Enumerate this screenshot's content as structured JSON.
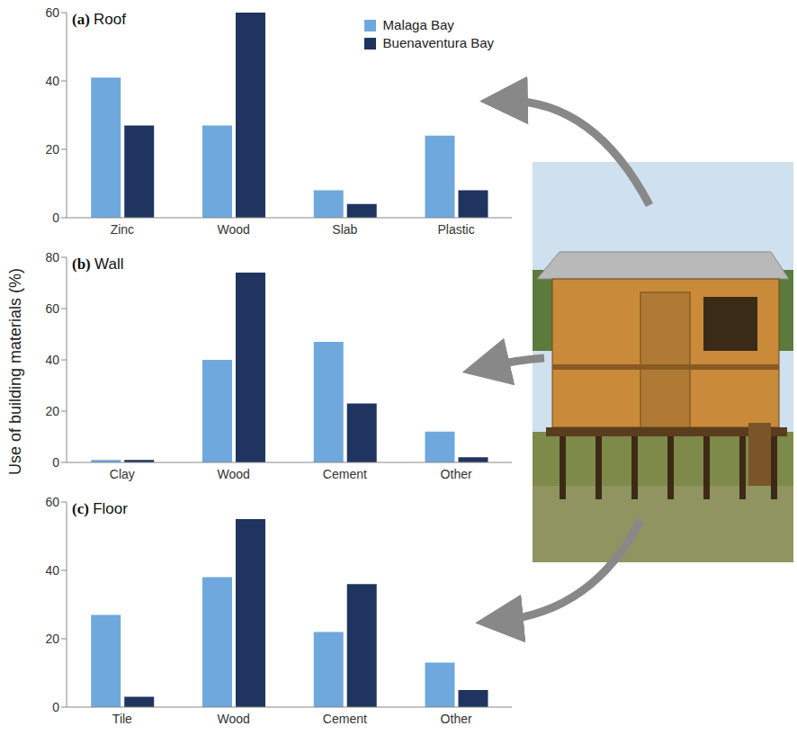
{
  "ylabel": "Use of building materials (%)",
  "chart_data": [
    {
      "type": "bar",
      "title": "(a) Roof",
      "categories": [
        "Zinc",
        "Wood",
        "Slab",
        "Plastic"
      ],
      "series": [
        {
          "name": "Malaga Bay",
          "color": "#6fa8dc",
          "values": [
            41,
            27,
            8,
            24
          ]
        },
        {
          "name": "Buenaventura Bay",
          "color": "#1f3560",
          "values": [
            27,
            60,
            4,
            8
          ]
        }
      ],
      "ylim": [
        0,
        60
      ],
      "yticks": [
        0,
        20,
        40,
        60
      ],
      "grid": false,
      "legend": "upper right"
    },
    {
      "type": "bar",
      "title": "(b) Wall",
      "categories": [
        "Clay",
        "Wood",
        "Cement",
        "Other"
      ],
      "series": [
        {
          "name": "Malaga Bay",
          "color": "#6fa8dc",
          "values": [
            1,
            40,
            47,
            12
          ]
        },
        {
          "name": "Buenaventura Bay",
          "color": "#1f3560",
          "values": [
            1,
            74,
            23,
            2
          ]
        }
      ],
      "ylim": [
        0,
        80
      ],
      "yticks": [
        0,
        20,
        40,
        60,
        80
      ],
      "grid": false
    },
    {
      "type": "bar",
      "title": "(c) Floor",
      "categories": [
        "Tile",
        "Wood",
        "Cement",
        "Other"
      ],
      "series": [
        {
          "name": "Malaga Bay",
          "color": "#6fa8dc",
          "values": [
            27,
            38,
            22,
            13
          ]
        },
        {
          "name": "Buenaventura Bay",
          "color": "#1f3560",
          "values": [
            3,
            55,
            36,
            5
          ]
        }
      ],
      "ylim": [
        0,
        60
      ],
      "yticks": [
        0,
        20,
        40,
        60
      ],
      "grid": false
    }
  ]
}
